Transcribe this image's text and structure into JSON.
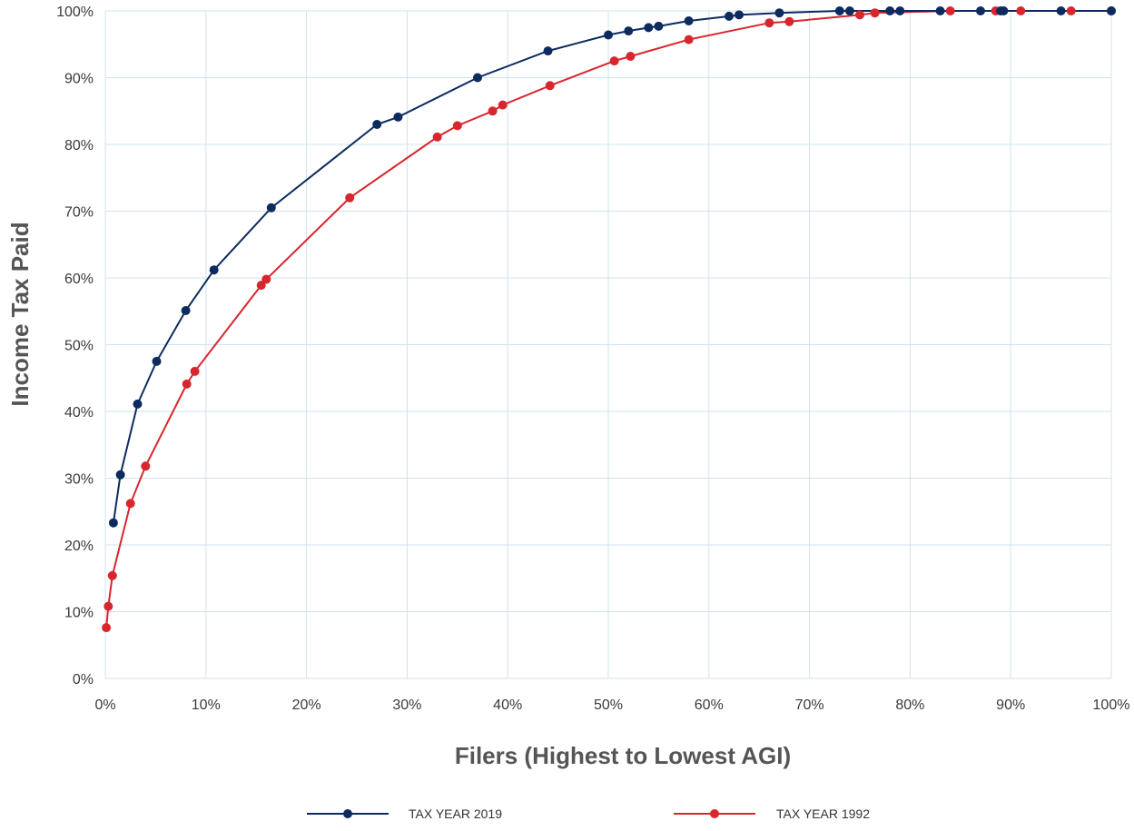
{
  "chart_data": {
    "type": "line",
    "title": "",
    "xlabel": "Filers (Highest to Lowest AGI)",
    "ylabel": "Income Tax Paid",
    "xlim": [
      0,
      100
    ],
    "ylim": [
      0,
      100
    ],
    "x_ticks": [
      "0%",
      "10%",
      "20%",
      "30%",
      "40%",
      "50%",
      "60%",
      "70%",
      "80%",
      "90%",
      "100%"
    ],
    "y_ticks": [
      "0%",
      "10%",
      "20%",
      "30%",
      "40%",
      "50%",
      "60%",
      "70%",
      "80%",
      "90%",
      "100%"
    ],
    "grid": true,
    "legend_position": "bottom",
    "series": [
      {
        "name": "TAX YEAR 2019",
        "color": "#0d2b5e",
        "points": [
          [
            0.8,
            23.3
          ],
          [
            1.5,
            30.5
          ],
          [
            3.2,
            41.1
          ],
          [
            5.1,
            47.5
          ],
          [
            8.0,
            55.1
          ],
          [
            10.8,
            61.2
          ],
          [
            16.5,
            70.5
          ],
          [
            27.0,
            83.0
          ],
          [
            29.1,
            84.1
          ],
          [
            37.0,
            90.0
          ],
          [
            44.0,
            94.0
          ],
          [
            50.0,
            96.4
          ],
          [
            52.0,
            97.0
          ],
          [
            54.0,
            97.5
          ],
          [
            55.0,
            97.7
          ],
          [
            58.0,
            98.5
          ],
          [
            62.0,
            99.2
          ],
          [
            63.0,
            99.4
          ],
          [
            67.0,
            99.7
          ],
          [
            73.0,
            100.0
          ],
          [
            74.0,
            100.0
          ],
          [
            78.0,
            100.0
          ],
          [
            79.0,
            100.0
          ],
          [
            83.0,
            100.0
          ],
          [
            87.0,
            100.0
          ],
          [
            89.0,
            100.0
          ],
          [
            89.3,
            100.0
          ],
          [
            95.0,
            100.0
          ],
          [
            100.0,
            100.0
          ]
        ]
      },
      {
        "name": "TAX YEAR 1992",
        "color": "#d8262e",
        "points": [
          [
            0.1,
            7.6
          ],
          [
            0.3,
            10.8
          ],
          [
            0.7,
            15.4
          ],
          [
            2.5,
            26.2
          ],
          [
            4.0,
            31.8
          ],
          [
            8.1,
            44.1
          ],
          [
            8.9,
            46.0
          ],
          [
            15.5,
            58.9
          ],
          [
            16.0,
            59.8
          ],
          [
            24.3,
            72.0
          ],
          [
            33.0,
            81.1
          ],
          [
            35.0,
            82.8
          ],
          [
            38.5,
            85.0
          ],
          [
            39.5,
            85.9
          ],
          [
            44.2,
            88.8
          ],
          [
            50.6,
            92.5
          ],
          [
            52.2,
            93.2
          ],
          [
            58.0,
            95.7
          ],
          [
            66.0,
            98.2
          ],
          [
            68.0,
            98.4
          ],
          [
            75.0,
            99.4
          ],
          [
            76.5,
            99.7
          ],
          [
            84.0,
            100.0
          ],
          [
            88.5,
            100.0
          ],
          [
            91.0,
            100.0
          ],
          [
            96.0,
            100.0
          ],
          [
            100.0,
            100.0
          ]
        ]
      }
    ]
  }
}
